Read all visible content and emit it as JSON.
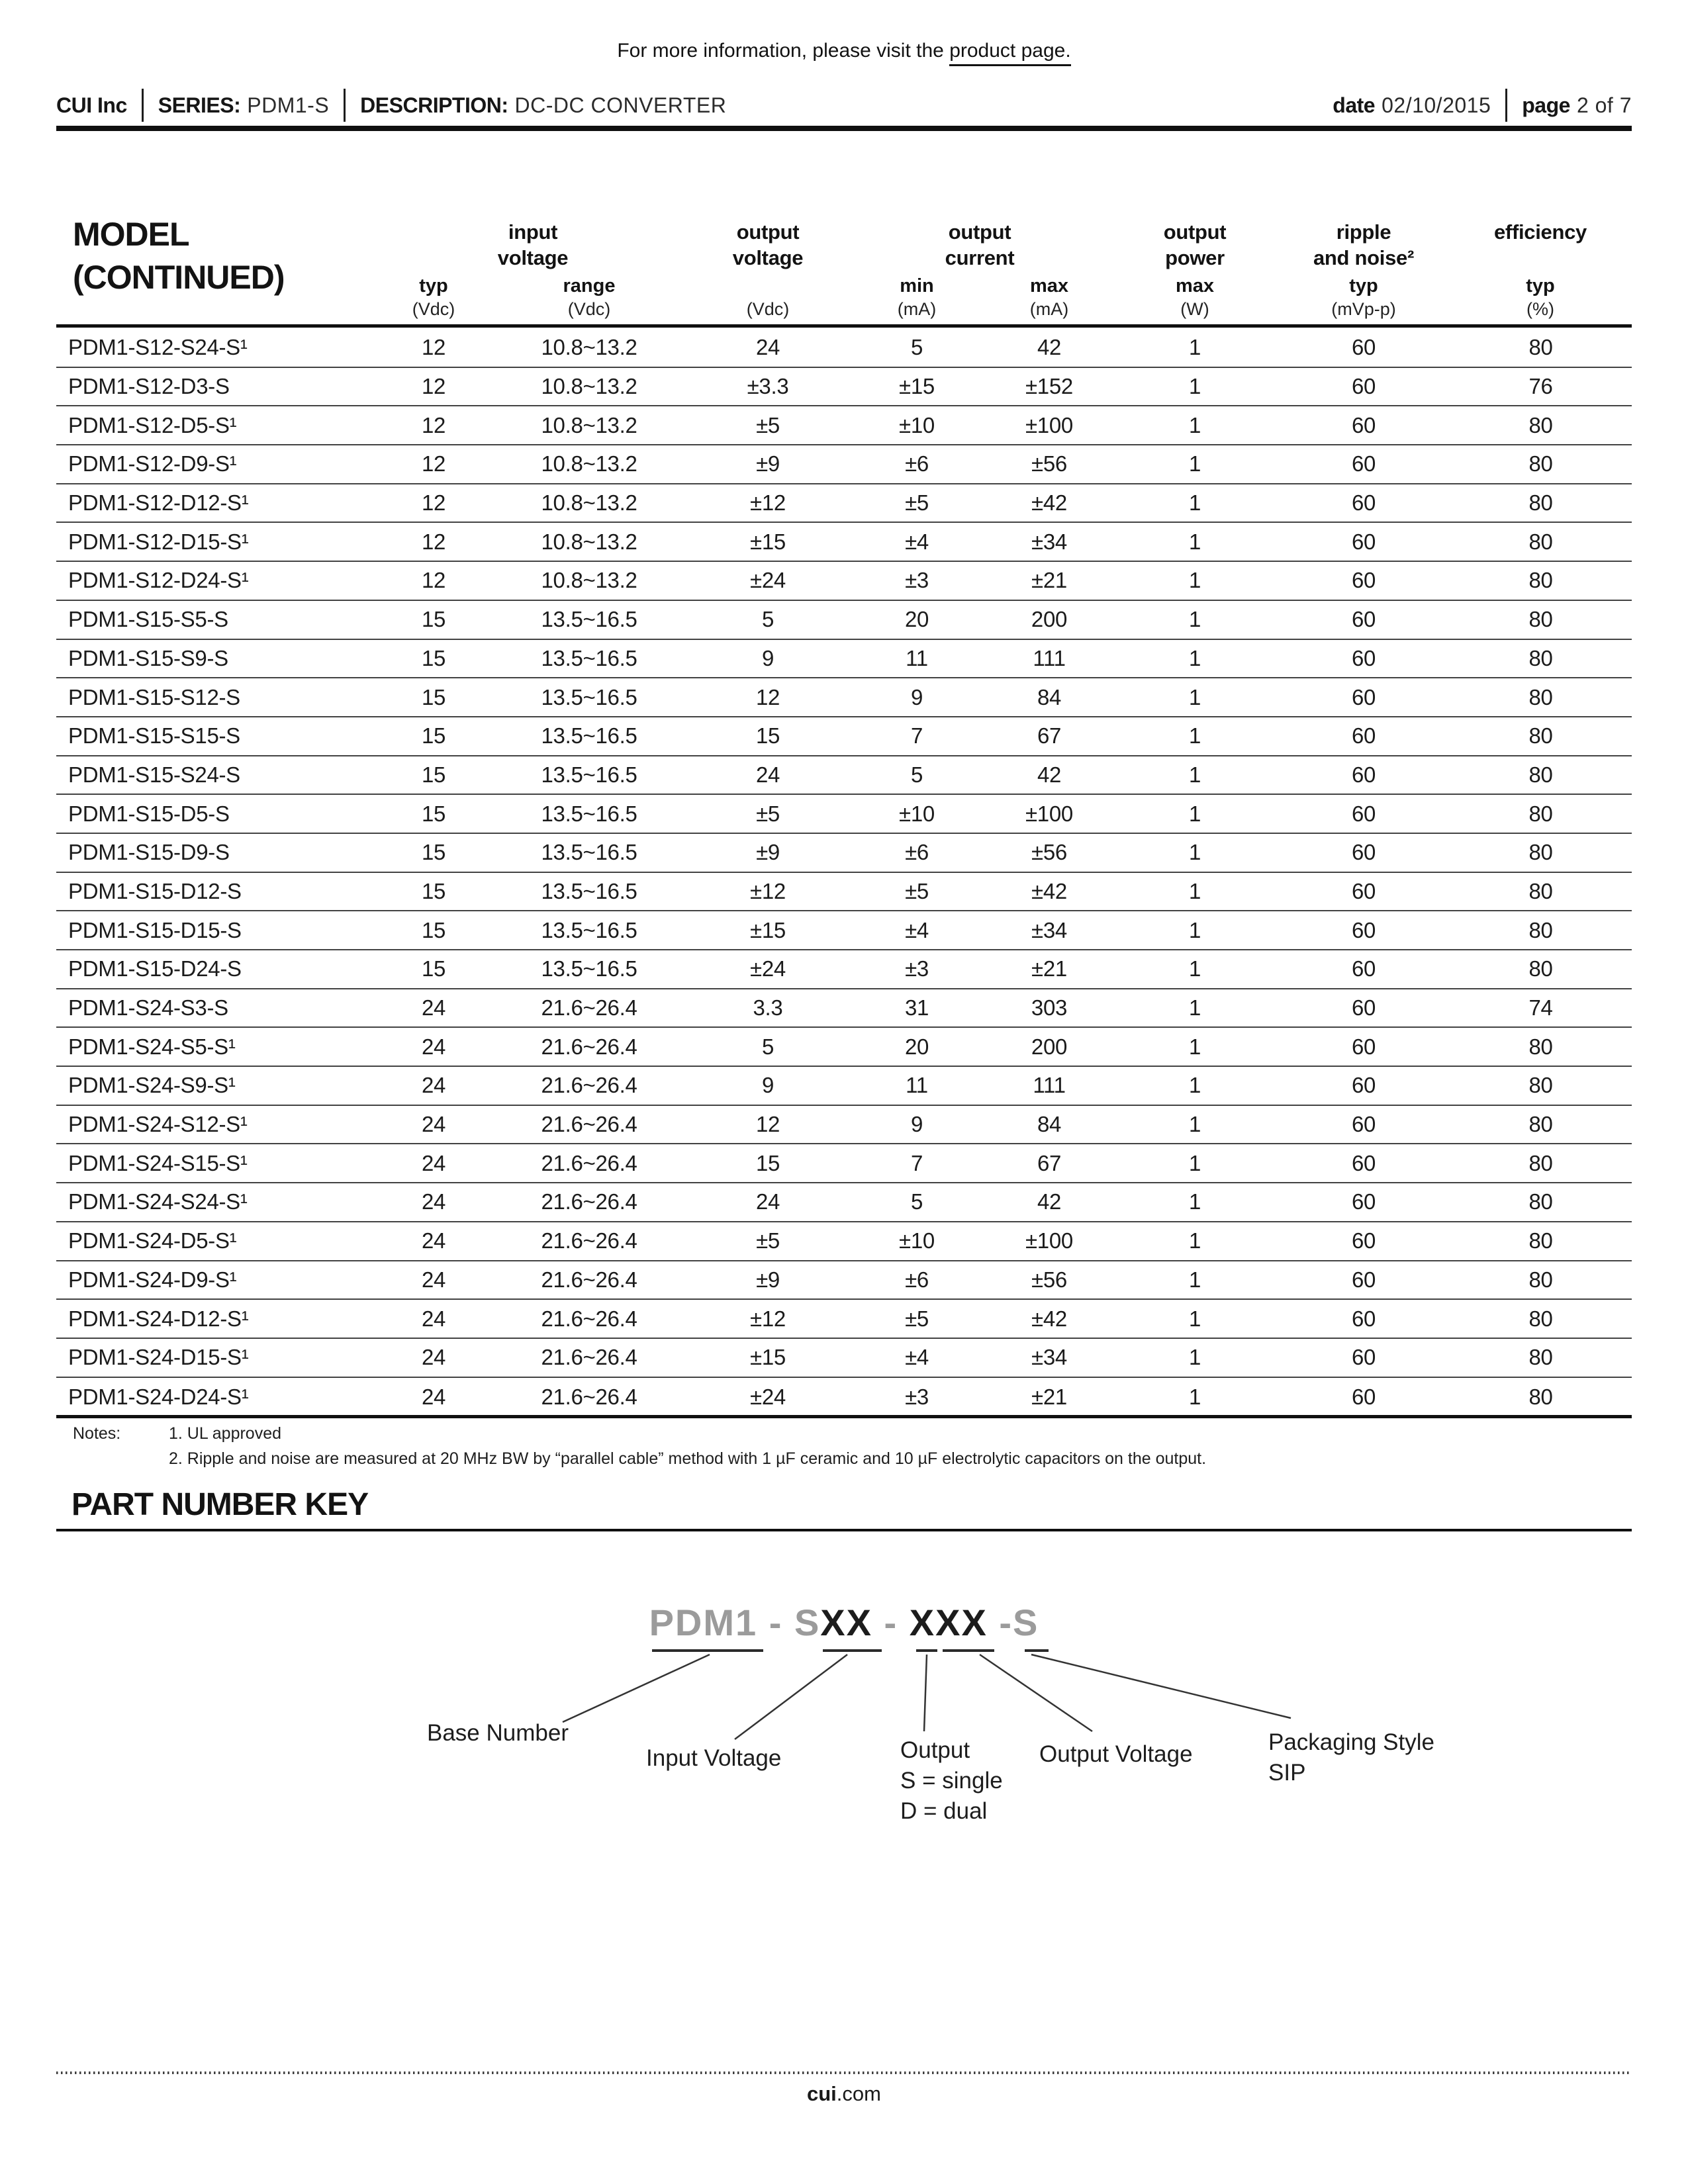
{
  "info": {
    "prefix": "For more information, please visit the ",
    "link": "product page."
  },
  "header": {
    "company": "CUI Inc",
    "series_label": "SERIES:",
    "series_value": "PDM1-S",
    "description_label": "DESCRIPTION:",
    "description_value": "DC-DC CONVERTER",
    "date_label": "date",
    "date_value": "02/10/2015",
    "page_label": "page",
    "page_value": "2 of 7"
  },
  "table": {
    "title_line1": "MODEL",
    "title_line2": "(CONTINUED)",
    "groups": [
      {
        "line1": "input",
        "line2": "voltage"
      },
      {
        "line1": "output",
        "line2": "voltage"
      },
      {
        "line1": "output",
        "line2": "current"
      },
      {
        "line1": "output",
        "line2": "power"
      },
      {
        "line1": "ripple",
        "line2": "and noise²"
      },
      {
        "line1": "efficiency",
        "line2": ""
      }
    ],
    "attrs": [
      "typ",
      "range",
      "min",
      "max",
      "max",
      "typ",
      "typ"
    ],
    "units": [
      "(Vdc)",
      "(Vdc)",
      "(Vdc)",
      "(mA)",
      "(mA)",
      "(W)",
      "(mVp-p)",
      "(%)"
    ],
    "rows": [
      [
        "PDM1-S12-S24-S¹",
        "12",
        "10.8~13.2",
        "24",
        "5",
        "42",
        "1",
        "60",
        "80"
      ],
      [
        "PDM1-S12-D3-S",
        "12",
        "10.8~13.2",
        "±3.3",
        "±15",
        "±152",
        "1",
        "60",
        "76"
      ],
      [
        "PDM1-S12-D5-S¹",
        "12",
        "10.8~13.2",
        "±5",
        "±10",
        "±100",
        "1",
        "60",
        "80"
      ],
      [
        "PDM1-S12-D9-S¹",
        "12",
        "10.8~13.2",
        "±9",
        "±6",
        "±56",
        "1",
        "60",
        "80"
      ],
      [
        "PDM1-S12-D12-S¹",
        "12",
        "10.8~13.2",
        "±12",
        "±5",
        "±42",
        "1",
        "60",
        "80"
      ],
      [
        "PDM1-S12-D15-S¹",
        "12",
        "10.8~13.2",
        "±15",
        "±4",
        "±34",
        "1",
        "60",
        "80"
      ],
      [
        "PDM1-S12-D24-S¹",
        "12",
        "10.8~13.2",
        "±24",
        "±3",
        "±21",
        "1",
        "60",
        "80"
      ],
      [
        "PDM1-S15-S5-S",
        "15",
        "13.5~16.5",
        "5",
        "20",
        "200",
        "1",
        "60",
        "80"
      ],
      [
        "PDM1-S15-S9-S",
        "15",
        "13.5~16.5",
        "9",
        "11",
        "111",
        "1",
        "60",
        "80"
      ],
      [
        "PDM1-S15-S12-S",
        "15",
        "13.5~16.5",
        "12",
        "9",
        "84",
        "1",
        "60",
        "80"
      ],
      [
        "PDM1-S15-S15-S",
        "15",
        "13.5~16.5",
        "15",
        "7",
        "67",
        "1",
        "60",
        "80"
      ],
      [
        "PDM1-S15-S24-S",
        "15",
        "13.5~16.5",
        "24",
        "5",
        "42",
        "1",
        "60",
        "80"
      ],
      [
        "PDM1-S15-D5-S",
        "15",
        "13.5~16.5",
        "±5",
        "±10",
        "±100",
        "1",
        "60",
        "80"
      ],
      [
        "PDM1-S15-D9-S",
        "15",
        "13.5~16.5",
        "±9",
        "±6",
        "±56",
        "1",
        "60",
        "80"
      ],
      [
        "PDM1-S15-D12-S",
        "15",
        "13.5~16.5",
        "±12",
        "±5",
        "±42",
        "1",
        "60",
        "80"
      ],
      [
        "PDM1-S15-D15-S",
        "15",
        "13.5~16.5",
        "±15",
        "±4",
        "±34",
        "1",
        "60",
        "80"
      ],
      [
        "PDM1-S15-D24-S",
        "15",
        "13.5~16.5",
        "±24",
        "±3",
        "±21",
        "1",
        "60",
        "80"
      ],
      [
        "PDM1-S24-S3-S",
        "24",
        "21.6~26.4",
        "3.3",
        "31",
        "303",
        "1",
        "60",
        "74"
      ],
      [
        "PDM1-S24-S5-S¹",
        "24",
        "21.6~26.4",
        "5",
        "20",
        "200",
        "1",
        "60",
        "80"
      ],
      [
        "PDM1-S24-S9-S¹",
        "24",
        "21.6~26.4",
        "9",
        "11",
        "111",
        "1",
        "60",
        "80"
      ],
      [
        "PDM1-S24-S12-S¹",
        "24",
        "21.6~26.4",
        "12",
        "9",
        "84",
        "1",
        "60",
        "80"
      ],
      [
        "PDM1-S24-S15-S¹",
        "24",
        "21.6~26.4",
        "15",
        "7",
        "67",
        "1",
        "60",
        "80"
      ],
      [
        "PDM1-S24-S24-S¹",
        "24",
        "21.6~26.4",
        "24",
        "5",
        "42",
        "1",
        "60",
        "80"
      ],
      [
        "PDM1-S24-D5-S¹",
        "24",
        "21.6~26.4",
        "±5",
        "±10",
        "±100",
        "1",
        "60",
        "80"
      ],
      [
        "PDM1-S24-D9-S¹",
        "24",
        "21.6~26.4",
        "±9",
        "±6",
        "±56",
        "1",
        "60",
        "80"
      ],
      [
        "PDM1-S24-D12-S¹",
        "24",
        "21.6~26.4",
        "±12",
        "±5",
        "±42",
        "1",
        "60",
        "80"
      ],
      [
        "PDM1-S24-D15-S¹",
        "24",
        "21.6~26.4",
        "±15",
        "±4",
        "±34",
        "1",
        "60",
        "80"
      ],
      [
        "PDM1-S24-D24-S¹",
        "24",
        "21.6~26.4",
        "±24",
        "±3",
        "±21",
        "1",
        "60",
        "80"
      ]
    ]
  },
  "notes": {
    "label": "Notes:",
    "items": [
      "1. UL approved",
      "2. Ripple and noise are measured at 20 MHz BW by “parallel cable” method with 1 µF ceramic and 10 µF electrolytic capacitors on the output."
    ]
  },
  "part_number_key": {
    "title": "PART NUMBER KEY",
    "segments": [
      {
        "text": "PDM1",
        "style": "gray"
      },
      {
        "text": " - ",
        "style": "gray"
      },
      {
        "text": "S",
        "style": "gray"
      },
      {
        "text": "XX",
        "style": "black"
      },
      {
        "text": " - ",
        "style": "gray"
      },
      {
        "text": "XXX",
        "style": "black"
      },
      {
        "text": " -",
        "style": "gray"
      },
      {
        "text": "S",
        "style": "gray"
      }
    ],
    "labels": {
      "base_number": "Base Number",
      "input_voltage": "Input Voltage",
      "output_line1": "Output",
      "output_line2": "S = single",
      "output_line3": "D = dual",
      "output_voltage": "Output Voltage",
      "packaging_line1": "Packaging Style",
      "packaging_line2": "SIP"
    },
    "line_color": "#333333",
    "gray_color": "#9b9b9b",
    "black_color": "#1c1c1c"
  },
  "footer": {
    "site_bold": "cui",
    "site_rest": ".com"
  }
}
